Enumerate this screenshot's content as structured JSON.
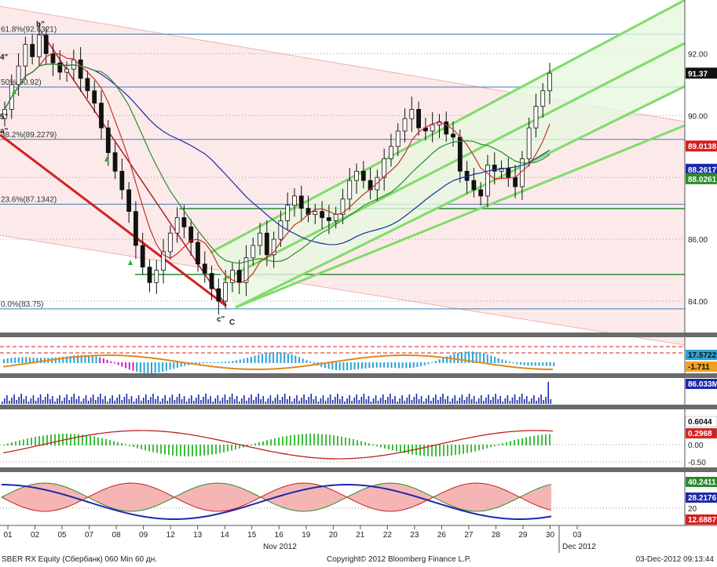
{
  "footer": {
    "left": "SBER RX Equity (Сбербанк) 060 Min 60 дн.",
    "center": "Copyright© 2012 Bloomberg Finance L.P.",
    "right": "03-Dec-2012 09:13:44"
  },
  "chart_data": {
    "type": "candlestick",
    "title": "",
    "x_axis": {
      "tick_labels": [
        "01",
        "02",
        "05",
        "07",
        "08",
        "09",
        "12",
        "13",
        "14",
        "15",
        "16",
        "19",
        "20",
        "21",
        "22",
        "23",
        "26",
        "27",
        "28",
        "29",
        "30",
        "03"
      ],
      "month_labels": [
        "Nov 2012",
        "Dec 2012"
      ]
    },
    "price_panel": {
      "ylim": [
        83.0,
        94.0
      ],
      "ytick_labels": [
        "84.00",
        "86.00",
        "88.00",
        "90.00",
        "92.00"
      ],
      "last_price": "91.37",
      "tags": [
        {
          "label": "91.37",
          "value": 91.37,
          "bg": "#111111",
          "fg": "#ffffff"
        },
        {
          "label": "89.0138",
          "value": 89.0138,
          "bg": "#d42020",
          "fg": "#ffffff"
        },
        {
          "label": "88.2617",
          "value": 88.2617,
          "bg": "#1c2aa8",
          "fg": "#ffffff"
        },
        {
          "label": "88.0261",
          "value": 88.0261,
          "bg": "#2d8a2d",
          "fg": "#ffffff"
        }
      ],
      "fibonacci": [
        {
          "label": "61.8%(92.6321)",
          "value": 92.6321
        },
        {
          "label": "50%(90.92)",
          "value": 90.92
        },
        {
          "label": "38.2%(89.2279)",
          "value": 89.2279
        },
        {
          "label": "23.6%(87.1342)",
          "value": 87.1342
        },
        {
          "label": "0.0%(83.75)",
          "value": 83.75
        }
      ],
      "wave_labels": [
        {
          "label": "b\"",
          "color": "#c0392b"
        },
        {
          "label": "4\"",
          "color": "#c020c0"
        },
        {
          "label": "5\"",
          "color": "#c020c0"
        },
        {
          "label": "a\"",
          "color": "#c0392b"
        },
        {
          "label": "c\"",
          "color": "#c0392b"
        },
        {
          "label": "C",
          "color": "#c0392b"
        }
      ],
      "candles_close": [
        90.2,
        91.0,
        91.6,
        92.3,
        91.9,
        92.6,
        92.0,
        91.7,
        91.4,
        91.5,
        91.8,
        91.2,
        90.8,
        90.4,
        89.6,
        88.8,
        88.2,
        87.6,
        86.9,
        85.8,
        85.1,
        84.6,
        85.0,
        85.6,
        86.2,
        86.7,
        86.4,
        85.9,
        85.2,
        84.9,
        84.4,
        84.0,
        84.6,
        85.0,
        84.6,
        85.4,
        85.8,
        86.2,
        85.5,
        86.0,
        86.6,
        87.1,
        87.4,
        87.0,
        86.8,
        86.9,
        86.7,
        86.6,
        86.8,
        87.3,
        87.9,
        88.2,
        87.9,
        87.6,
        88.0,
        88.6,
        89.0,
        89.5,
        89.9,
        90.2,
        89.6,
        89.5,
        89.7,
        89.8,
        89.4,
        89.3,
        88.2,
        87.9,
        87.6,
        87.4,
        88.4,
        88.2,
        88.3,
        88.0,
        87.7,
        88.6,
        89.6,
        90.3,
        90.8,
        91.37
      ],
      "channel_color": "#7fdc6a",
      "moving_averages": [
        {
          "name": "MA-short",
          "color": "#cc2b2b",
          "last": 89.0138
        },
        {
          "name": "MA-long",
          "color": "#1c2aa8",
          "last": 88.2617
        },
        {
          "name": "MA-mid",
          "color": "#2d8a2d",
          "last": 88.0261
        }
      ]
    },
    "indicator_panels": [
      {
        "name": "oscillator",
        "ytick_labels": [],
        "tags": [
          {
            "label": "17.5722",
            "bg": "#29a3d6"
          },
          {
            "label": "-1.711",
            "bg": "#f0a020"
          }
        ]
      },
      {
        "name": "volume",
        "tags": [
          {
            "label": "86.033M",
            "bg": "#1c2aa8"
          }
        ]
      },
      {
        "name": "macd",
        "ytick_labels": [
          "0.00",
          "-0.50"
        ],
        "tags": [
          {
            "label": "0.6044",
            "bg": "#ffffff"
          },
          {
            "label": "0.2968",
            "bg": "#d42020"
          }
        ]
      },
      {
        "name": "dmi",
        "ytick_labels": [
          "20"
        ],
        "tags": [
          {
            "label": "40.2411",
            "bg": "#2d8a2d"
          },
          {
            "label": "28.2176",
            "bg": "#1c2aa8"
          },
          {
            "label": "12.6887",
            "bg": "#d42020"
          }
        ]
      }
    ]
  }
}
